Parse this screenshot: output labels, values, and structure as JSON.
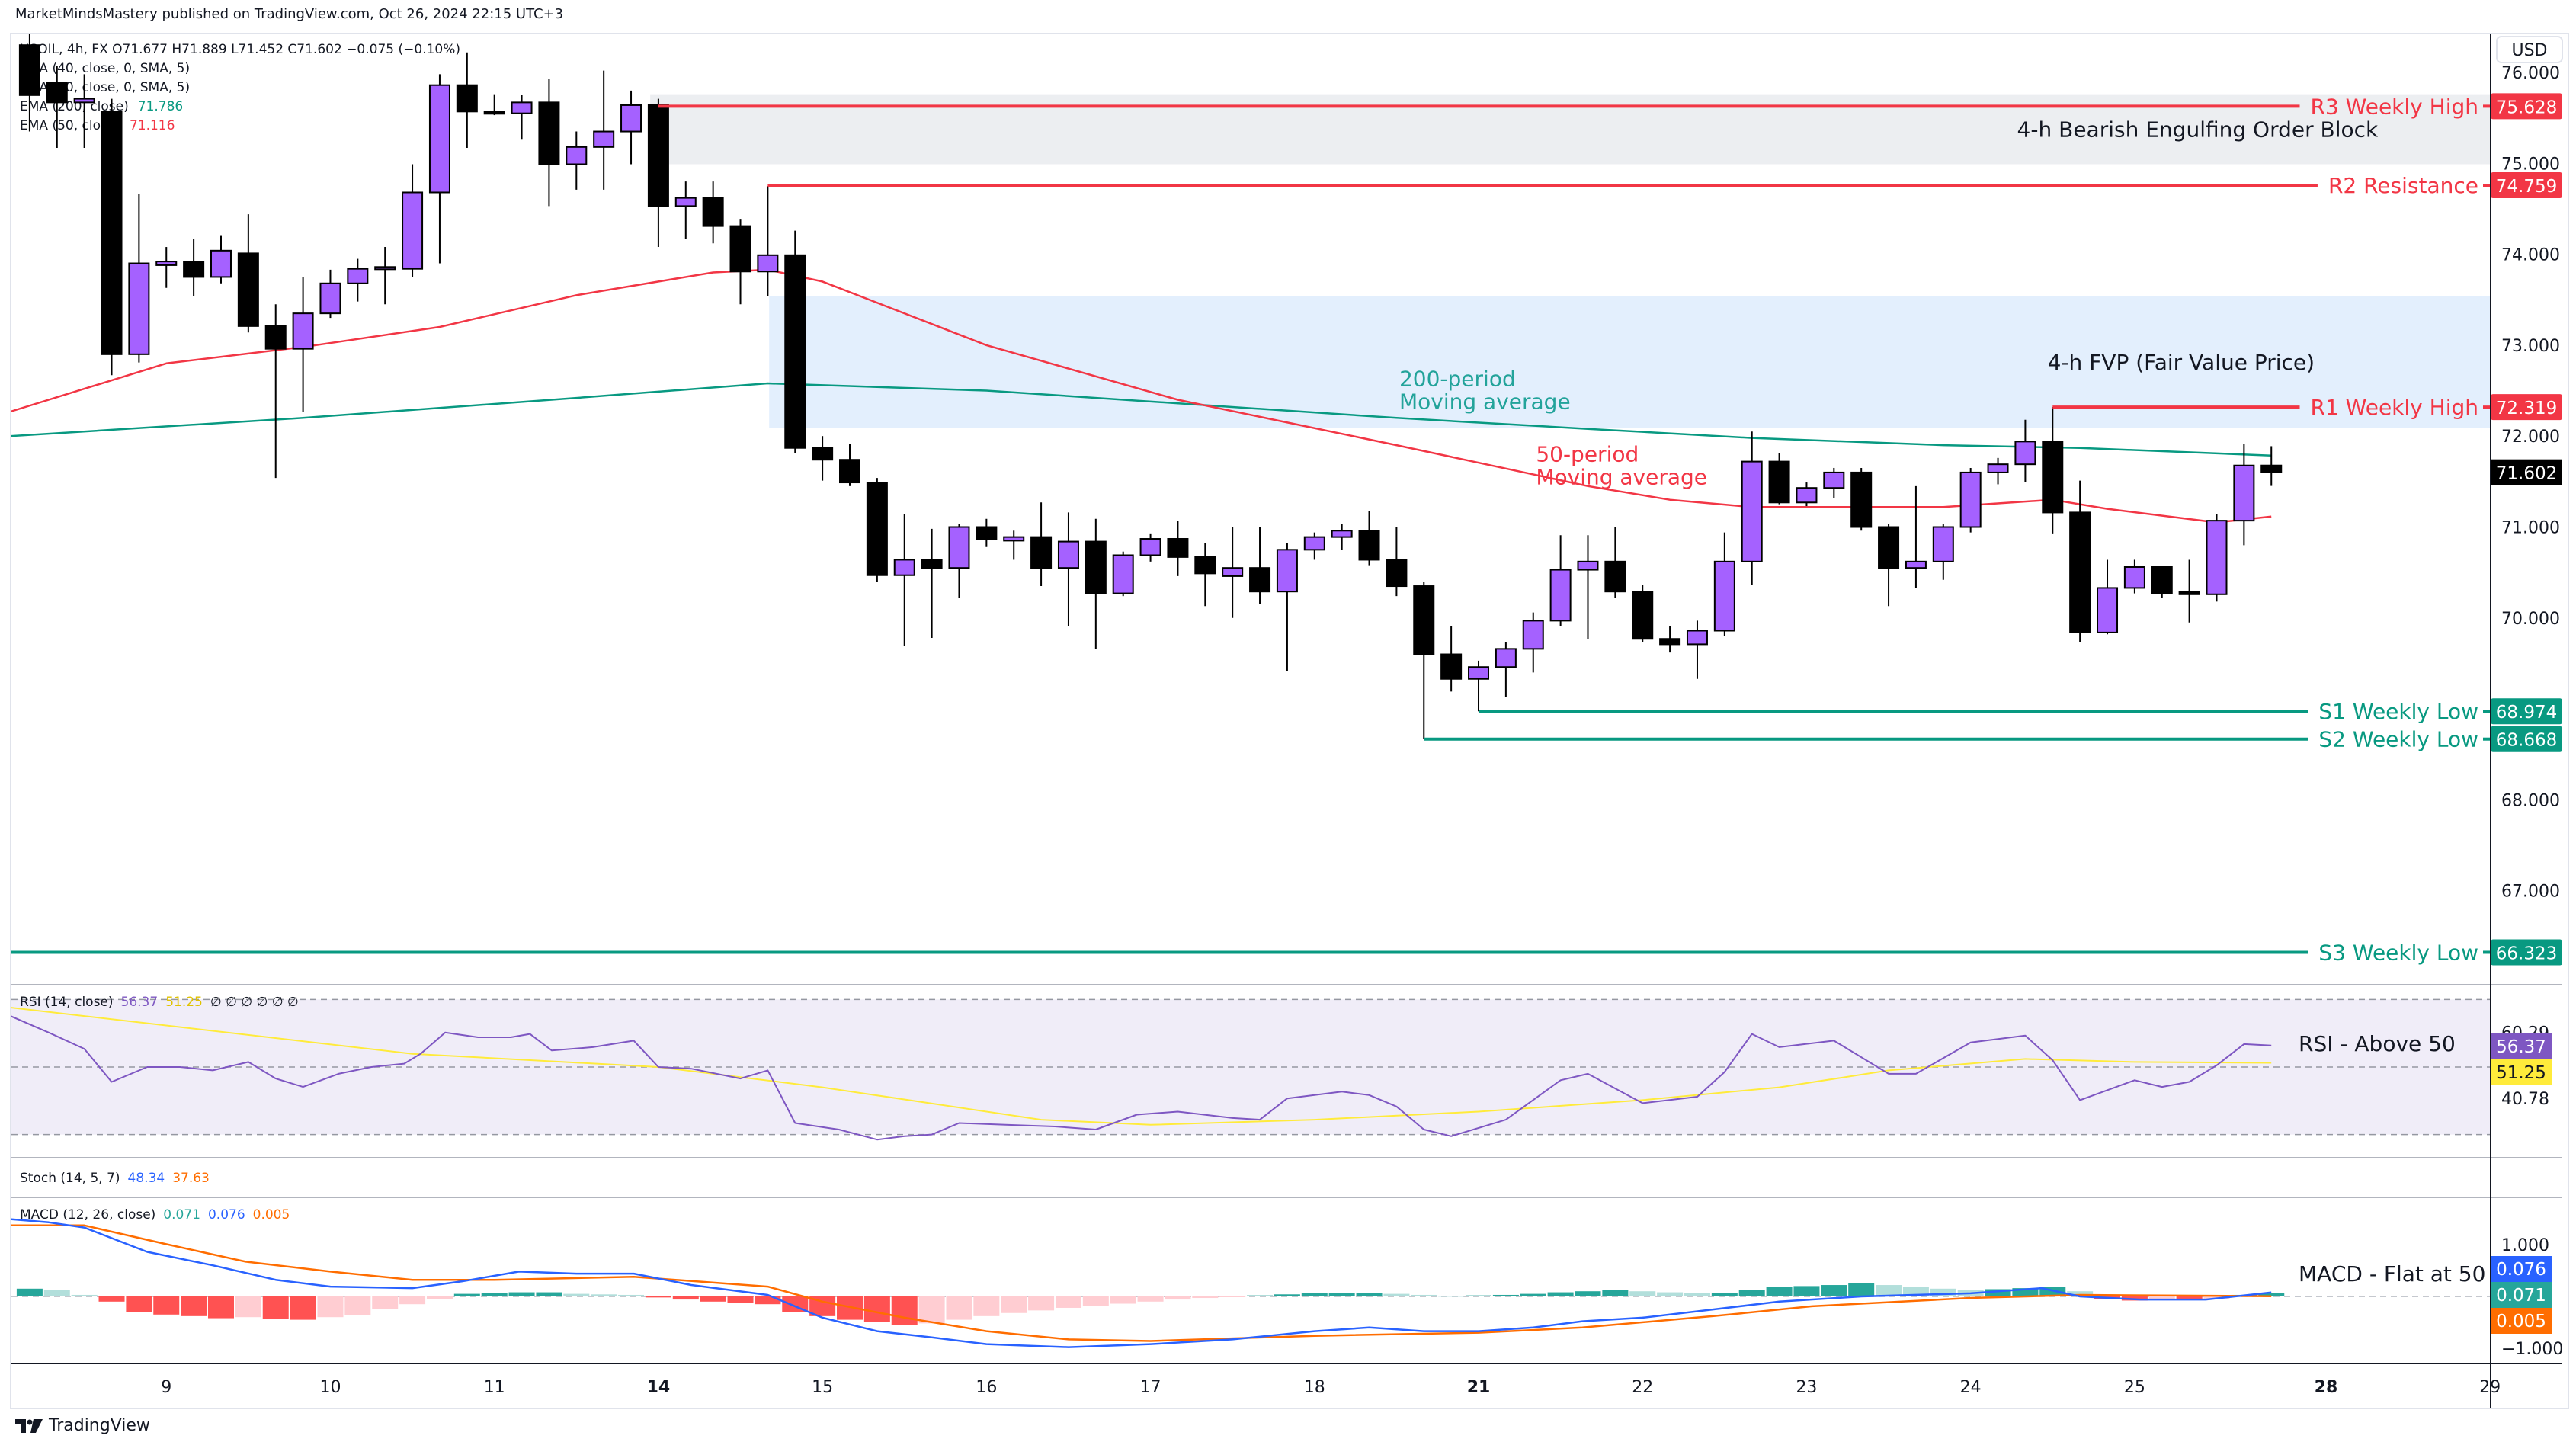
{
  "header": {
    "publisher_line": "MarketMindsMastery published on TradingView.com, Oct 26, 2024 22:15 UTC+3"
  },
  "legend": {
    "symbol_line": "USOIL, 4h, FX  O71.677  H71.889  L71.452  C71.602  −0.075 (−0.10%)",
    "lines": [
      {
        "text": "EMA (40, close, 0, SMA, 5)",
        "value": "",
        "color": "#131722"
      },
      {
        "text": "EMA (20, close, 0, SMA, 5)",
        "value": "",
        "color": "#131722"
      },
      {
        "text": "EMA (200, close)",
        "value": "71.786",
        "color": "#089981"
      },
      {
        "text": "EMA (50, close)",
        "value": "71.116",
        "color": "#f23645"
      }
    ]
  },
  "price_axis": {
    "currency": "USD",
    "ticks": [
      "76.000",
      "75.000",
      "74.000",
      "73.000",
      "72.000",
      "71.000",
      "70.000",
      "68.000",
      "67.000"
    ],
    "last_price": "71.602",
    "last_price_color": "#000000"
  },
  "colors": {
    "up": "#a561ff",
    "down": "#000000",
    "ema200": "#089981",
    "ema50": "#f23645",
    "resistance": "#f23645",
    "support": "#089981"
  },
  "chart_data": {
    "type": "candlestick",
    "symbol": "USOIL",
    "interval": "4h",
    "ohlc": [
      [
        76.3,
        76.43,
        75.35,
        75.75
      ],
      [
        75.89,
        76.07,
        75.17,
        75.67
      ],
      [
        75.67,
        75.98,
        75.17,
        75.71
      ],
      [
        75.57,
        75.71,
        72.67,
        72.9
      ],
      [
        72.9,
        74.66,
        72.81,
        73.9
      ],
      [
        73.88,
        74.08,
        73.63,
        73.92
      ],
      [
        73.92,
        74.17,
        73.54,
        73.75
      ],
      [
        73.75,
        74.21,
        73.68,
        74.04
      ],
      [
        74.01,
        74.44,
        73.14,
        73.21
      ],
      [
        73.21,
        73.45,
        71.54,
        72.96
      ],
      [
        72.96,
        73.75,
        72.27,
        73.35
      ],
      [
        73.35,
        73.83,
        73.3,
        73.68
      ],
      [
        73.68,
        73.95,
        73.48,
        73.84
      ],
      [
        73.84,
        74.08,
        73.45,
        73.86
      ],
      [
        73.84,
        74.99,
        73.75,
        74.68
      ],
      [
        74.68,
        75.98,
        73.9,
        75.86
      ],
      [
        75.86,
        76.22,
        75.17,
        75.57
      ],
      [
        75.57,
        75.76,
        75.53,
        75.55
      ],
      [
        75.55,
        75.75,
        75.26,
        75.67
      ],
      [
        75.67,
        75.93,
        74.53,
        74.99
      ],
      [
        74.99,
        75.35,
        74.71,
        75.18
      ],
      [
        75.18,
        76.02,
        74.71,
        75.35
      ],
      [
        75.35,
        75.8,
        74.99,
        75.64
      ],
      [
        75.64,
        75.71,
        74.08,
        74.53
      ],
      [
        74.53,
        74.8,
        74.17,
        74.62
      ],
      [
        74.62,
        74.8,
        74.12,
        74.31
      ],
      [
        74.31,
        74.39,
        73.45,
        73.81
      ],
      [
        73.81,
        74.75,
        73.54,
        73.99
      ],
      [
        73.99,
        74.26,
        71.81,
        71.87
      ],
      [
        71.87,
        72.0,
        71.51,
        71.74
      ],
      [
        71.74,
        71.91,
        71.45,
        71.49
      ],
      [
        71.49,
        71.54,
        70.4,
        70.47
      ],
      [
        70.47,
        71.14,
        69.69,
        70.64
      ],
      [
        70.64,
        70.98,
        69.78,
        70.55
      ],
      [
        70.55,
        71.03,
        70.22,
        71.0
      ],
      [
        71.0,
        71.09,
        70.78,
        70.87
      ],
      [
        70.85,
        70.96,
        70.64,
        70.89
      ],
      [
        70.89,
        71.27,
        70.35,
        70.55
      ],
      [
        70.55,
        71.16,
        69.91,
        70.84
      ],
      [
        70.84,
        71.09,
        69.66,
        70.27
      ],
      [
        70.27,
        70.73,
        70.24,
        70.69
      ],
      [
        70.69,
        70.93,
        70.62,
        70.87
      ],
      [
        70.87,
        71.07,
        70.46,
        70.67
      ],
      [
        70.67,
        70.82,
        70.13,
        70.49
      ],
      [
        70.46,
        71.0,
        70.0,
        70.55
      ],
      [
        70.55,
        71.0,
        70.15,
        70.29
      ],
      [
        70.29,
        70.82,
        69.42,
        70.75
      ],
      [
        70.75,
        70.94,
        70.64,
        70.89
      ],
      [
        70.89,
        71.03,
        70.75,
        70.96
      ],
      [
        70.96,
        71.18,
        70.58,
        70.64
      ],
      [
        70.64,
        71.0,
        70.24,
        70.35
      ],
      [
        70.35,
        70.4,
        68.668,
        69.6
      ],
      [
        69.6,
        69.91,
        69.19,
        69.33
      ],
      [
        69.33,
        69.53,
        68.974,
        69.46
      ],
      [
        69.46,
        69.73,
        69.13,
        69.66
      ],
      [
        69.66,
        70.06,
        69.4,
        69.97
      ],
      [
        69.97,
        70.91,
        69.91,
        70.53
      ],
      [
        70.53,
        70.91,
        69.77,
        70.62
      ],
      [
        70.62,
        71.0,
        70.22,
        70.29
      ],
      [
        70.29,
        70.36,
        69.73,
        69.77
      ],
      [
        69.77,
        69.91,
        69.62,
        69.71
      ],
      [
        69.71,
        69.97,
        69.33,
        69.86
      ],
      [
        69.86,
        70.94,
        69.8,
        70.62
      ],
      [
        70.62,
        72.05,
        70.36,
        71.72
      ],
      [
        71.72,
        71.81,
        71.25,
        71.27
      ],
      [
        71.27,
        71.49,
        71.23,
        71.43
      ],
      [
        71.43,
        71.65,
        71.32,
        71.6
      ],
      [
        71.6,
        71.65,
        70.96,
        71.0
      ],
      [
        71.0,
        71.03,
        70.13,
        70.55
      ],
      [
        70.55,
        71.45,
        70.33,
        70.62
      ],
      [
        70.62,
        71.03,
        70.42,
        71.0
      ],
      [
        71.0,
        71.65,
        70.94,
        71.6
      ],
      [
        71.6,
        71.76,
        71.47,
        71.69
      ],
      [
        71.69,
        72.18,
        71.49,
        71.94
      ],
      [
        71.94,
        72.319,
        70.93,
        71.16
      ],
      [
        71.16,
        71.51,
        69.73,
        69.84
      ],
      [
        69.84,
        70.64,
        69.82,
        70.33
      ],
      [
        70.33,
        70.64,
        70.27,
        70.56
      ],
      [
        70.56,
        70.56,
        70.22,
        70.27
      ],
      [
        70.29,
        70.64,
        69.95,
        70.26
      ],
      [
        70.26,
        71.14,
        70.18,
        71.07
      ],
      [
        71.07,
        71.91,
        70.8,
        71.677
      ],
      [
        71.677,
        71.889,
        71.452,
        71.602
      ]
    ],
    "ema200": [
      [
        -0.7,
        72.0
      ],
      [
        10,
        72.2
      ],
      [
        20,
        72.42
      ],
      [
        27,
        72.58
      ],
      [
        35,
        72.5
      ],
      [
        45,
        72.3
      ],
      [
        50,
        72.2
      ],
      [
        57,
        72.08
      ],
      [
        63,
        71.98
      ],
      [
        70,
        71.9
      ],
      [
        75,
        71.87
      ],
      [
        82,
        71.786
      ]
    ],
    "ema50": [
      [
        -0.7,
        72.27
      ],
      [
        5,
        72.8
      ],
      [
        10,
        72.98
      ],
      [
        15,
        73.2
      ],
      [
        20,
        73.55
      ],
      [
        25,
        73.8
      ],
      [
        27,
        73.83
      ],
      [
        29,
        73.7
      ],
      [
        35,
        73.0
      ],
      [
        42,
        72.4
      ],
      [
        50,
        71.9
      ],
      [
        57,
        71.45
      ],
      [
        60,
        71.3
      ],
      [
        63,
        71.22
      ],
      [
        70,
        71.22
      ],
      [
        74,
        71.3
      ],
      [
        76,
        71.2
      ],
      [
        80,
        71.05
      ],
      [
        82,
        71.116
      ]
    ],
    "x_axis_days": [
      {
        "label": "9",
        "index": 5,
        "bold": false
      },
      {
        "label": "10",
        "index": 11,
        "bold": false
      },
      {
        "label": "11",
        "index": 17,
        "bold": false
      },
      {
        "label": "14",
        "index": 23,
        "bold": true
      },
      {
        "label": "15",
        "index": 29,
        "bold": false
      },
      {
        "label": "16",
        "index": 35,
        "bold": false
      },
      {
        "label": "17",
        "index": 41,
        "bold": false
      },
      {
        "label": "18",
        "index": 47,
        "bold": false
      },
      {
        "label": "21",
        "index": 53,
        "bold": true
      },
      {
        "label": "22",
        "index": 59,
        "bold": false
      },
      {
        "label": "23",
        "index": 65,
        "bold": false
      },
      {
        "label": "24",
        "index": 71,
        "bold": false
      },
      {
        "label": "25",
        "index": 77,
        "bold": false
      },
      {
        "label": "28",
        "index": 84,
        "bold": true
      },
      {
        "label": "29",
        "index": 90,
        "bold": false
      }
    ],
    "y_range": [
      65.9,
      76.4
    ]
  },
  "levels": [
    {
      "label": "R3 Weekly High",
      "value": 75.628,
      "price_label": "75.628",
      "type": "resistance",
      "start_index": 23
    },
    {
      "label": "R2 Resistance",
      "value": 74.759,
      "price_label": "74.759",
      "type": "resistance",
      "start_index": 27
    },
    {
      "label": "R1 Weekly High",
      "value": 72.319,
      "price_label": "72.319",
      "type": "resistance",
      "start_index": 74
    },
    {
      "label": "S1 Weekly Low",
      "value": 68.974,
      "price_label": "68.974",
      "type": "support",
      "start_index": 53
    },
    {
      "label": "S2 Weekly Low",
      "value": 68.668,
      "price_label": "68.668",
      "type": "support",
      "start_index": 51
    },
    {
      "label": "S3 Weekly Low",
      "value": 66.323,
      "price_label": "66.323",
      "type": "support",
      "start_index": -0.7
    }
  ],
  "zones": [
    {
      "label": "4-h Bearish Engulfing Order Block",
      "top": 75.76,
      "bottom": 74.99,
      "start_index": 22.7,
      "color": "#eceef1",
      "label_index": 79.3
    },
    {
      "label": "4-h FVP (Fair Value Price)",
      "top": 73.54,
      "bottom": 72.09,
      "start_index": 27.05,
      "color": "#e3effd",
      "label_index": 78.7
    }
  ],
  "annotations": [
    {
      "lines": [
        "200-period",
        "Moving average"
      ],
      "index": 50.1,
      "price": 72.55,
      "color": "#22a39a"
    },
    {
      "lines": [
        "50-period",
        "Moving average"
      ],
      "index": 55.1,
      "price": 71.72,
      "color": "#f23645"
    }
  ],
  "rsi": {
    "legend_label": "RSI (14, close)",
    "value": "56.37",
    "ma_value": "51.25",
    "placeholders": "∅ ∅ ∅ ∅ ∅ ∅",
    "axis_labels": [
      {
        "text": "60.29",
        "value": 60.29
      },
      {
        "text": "40.78",
        "value": 40.78
      }
    ],
    "note": "RSI -  Above 50",
    "bands": [
      70,
      50,
      30
    ],
    "line_color": "#7e57c2",
    "ma_color": "#ffeb3b",
    "series": [
      [
        -0.7,
        65.1
      ],
      [
        0.7,
        60.2
      ],
      [
        2,
        55.4
      ],
      [
        3,
        45.6
      ],
      [
        4.3,
        50
      ],
      [
        5.5,
        50
      ],
      [
        6.7,
        49
      ],
      [
        8,
        51.5
      ],
      [
        9,
        46.6
      ],
      [
        10,
        44.1
      ],
      [
        11.3,
        48
      ],
      [
        12.5,
        50
      ],
      [
        13.7,
        51
      ],
      [
        14.3,
        53.9
      ],
      [
        15.2,
        60.2
      ],
      [
        16.4,
        58.8
      ],
      [
        17.6,
        58.8
      ],
      [
        18.3,
        59.8
      ],
      [
        19.1,
        54.9
      ],
      [
        20.6,
        55.9
      ],
      [
        22.1,
        57.8
      ],
      [
        23,
        50
      ],
      [
        24.2,
        49.5
      ],
      [
        26,
        46.6
      ],
      [
        27,
        49
      ],
      [
        28,
        33.4
      ],
      [
        29.6,
        31.5
      ],
      [
        31,
        28.5
      ],
      [
        32,
        29.5
      ],
      [
        33,
        30
      ],
      [
        34,
        33.4
      ],
      [
        35.7,
        32.9
      ],
      [
        37.5,
        32.4
      ],
      [
        39,
        31.5
      ],
      [
        40.5,
        35.9
      ],
      [
        42,
        36.8
      ],
      [
        44,
        34.9
      ],
      [
        45,
        34.4
      ],
      [
        46,
        40.7
      ],
      [
        48,
        42.7
      ],
      [
        49,
        41.7
      ],
      [
        50,
        38.3
      ],
      [
        51,
        31.5
      ],
      [
        52,
        29.5
      ],
      [
        54,
        34.4
      ],
      [
        56,
        46.1
      ],
      [
        57,
        48
      ],
      [
        59,
        39.3
      ],
      [
        61,
        41.2
      ],
      [
        62,
        48.5
      ],
      [
        63,
        59.8
      ],
      [
        64,
        55.9
      ],
      [
        66,
        57.8
      ],
      [
        68,
        48
      ],
      [
        69,
        48
      ],
      [
        71,
        57.3
      ],
      [
        73,
        59.3
      ],
      [
        74,
        52
      ],
      [
        75,
        40.2
      ],
      [
        77,
        46.1
      ],
      [
        78,
        44.1
      ],
      [
        79,
        45.6
      ],
      [
        80,
        50.5
      ],
      [
        81,
        56.8
      ],
      [
        82,
        56.37
      ]
    ],
    "ma_series": [
      [
        -0.7,
        67.6
      ],
      [
        14,
        53.9
      ],
      [
        23,
        50
      ],
      [
        29,
        44
      ],
      [
        37,
        34.4
      ],
      [
        41,
        32.9
      ],
      [
        47,
        34.4
      ],
      [
        53,
        36.8
      ],
      [
        59,
        40.2
      ],
      [
        64,
        44
      ],
      [
        68,
        49
      ],
      [
        73,
        52.4
      ],
      [
        77,
        51.5
      ],
      [
        82,
        51.25
      ]
    ]
  },
  "stoch": {
    "legend_label": "Stoch (14, 5, 7)",
    "k": "48.34",
    "d": "37.63",
    "k_color": "#2962ff",
    "d_color": "#ff6d00"
  },
  "macd": {
    "legend_label": "MACD (12, 26, close)",
    "hist_value": "0.071",
    "macd_value": "0.076",
    "signal_value": "0.005",
    "axis_labels": [
      {
        "text": "1.000",
        "value": 1
      },
      {
        "text": "−1.000",
        "value": -1
      }
    ],
    "note": "MACD - Flat at 50",
    "macd_color": "#2962ff",
    "signal_color": "#ff6d00",
    "hist_color": "#26a69a",
    "macd_series": [
      [
        -0.7,
        1.49
      ],
      [
        0.7,
        1.43
      ],
      [
        2,
        1.33
      ],
      [
        4.3,
        0.86
      ],
      [
        6.7,
        0.6
      ],
      [
        9,
        0.32
      ],
      [
        11,
        0.19
      ],
      [
        14,
        0.16
      ],
      [
        15.8,
        0.29
      ],
      [
        17.9,
        0.48
      ],
      [
        20,
        0.44
      ],
      [
        22.1,
        0.44
      ],
      [
        24.2,
        0.22
      ],
      [
        27,
        0.03
      ],
      [
        29,
        -0.41
      ],
      [
        31,
        -0.67
      ],
      [
        33,
        -0.79
      ],
      [
        35,
        -0.92
      ],
      [
        38,
        -0.98
      ],
      [
        41,
        -0.92
      ],
      [
        44,
        -0.83
      ],
      [
        47,
        -0.67
      ],
      [
        49,
        -0.6
      ],
      [
        51,
        -0.67
      ],
      [
        53,
        -0.67
      ],
      [
        55,
        -0.6
      ],
      [
        56.8,
        -0.48
      ],
      [
        59,
        -0.41
      ],
      [
        61.6,
        -0.25
      ],
      [
        64,
        -0.1
      ],
      [
        67,
        0
      ],
      [
        71,
        0.06
      ],
      [
        73.6,
        0.16
      ],
      [
        75,
        0
      ],
      [
        77.2,
        -0.06
      ],
      [
        79.6,
        -0.06
      ],
      [
        82,
        0.076
      ]
    ],
    "signal_series": [
      [
        -0.7,
        1.37
      ],
      [
        2,
        1.37
      ],
      [
        4.9,
        1.02
      ],
      [
        7.9,
        0.67
      ],
      [
        11,
        0.48
      ],
      [
        14,
        0.32
      ],
      [
        17,
        0.32
      ],
      [
        22.1,
        0.38
      ],
      [
        27,
        0.19
      ],
      [
        29,
        -0.1
      ],
      [
        32,
        -0.41
      ],
      [
        35,
        -0.67
      ],
      [
        38,
        -0.83
      ],
      [
        41,
        -0.86
      ],
      [
        47,
        -0.76
      ],
      [
        53,
        -0.7
      ],
      [
        56.8,
        -0.6
      ],
      [
        61.6,
        -0.38
      ],
      [
        65.2,
        -0.19
      ],
      [
        71,
        -0.03
      ],
      [
        75,
        0.03
      ],
      [
        82,
        0.005
      ]
    ],
    "histogram": [
      0.15,
      0.12,
      0.03,
      -0.1,
      -0.3,
      -0.35,
      -0.38,
      -0.42,
      -0.4,
      -0.44,
      -0.45,
      -0.4,
      -0.36,
      -0.25,
      -0.15,
      -0.05,
      0.05,
      0.07,
      0.08,
      0.08,
      0.05,
      0.04,
      0.03,
      -0.02,
      -0.06,
      -0.1,
      -0.12,
      -0.15,
      -0.3,
      -0.38,
      -0.45,
      -0.5,
      -0.55,
      -0.52,
      -0.45,
      -0.38,
      -0.32,
      -0.27,
      -0.22,
      -0.18,
      -0.14,
      -0.1,
      -0.06,
      -0.03,
      -0.01,
      0.02,
      0.04,
      0.06,
      0.06,
      0.07,
      0.05,
      0.03,
      0.01,
      0.02,
      0.03,
      0.05,
      0.08,
      0.1,
      0.12,
      0.1,
      0.08,
      0.06,
      0.07,
      0.12,
      0.18,
      0.2,
      0.22,
      0.25,
      0.22,
      0.18,
      0.15,
      0.13,
      0.14,
      0.16,
      0.18,
      0.1,
      -0.05,
      -0.08,
      -0.06,
      -0.07,
      -0.05,
      0.03,
      0.071
    ]
  },
  "footer": {
    "brand": "TradingView"
  }
}
